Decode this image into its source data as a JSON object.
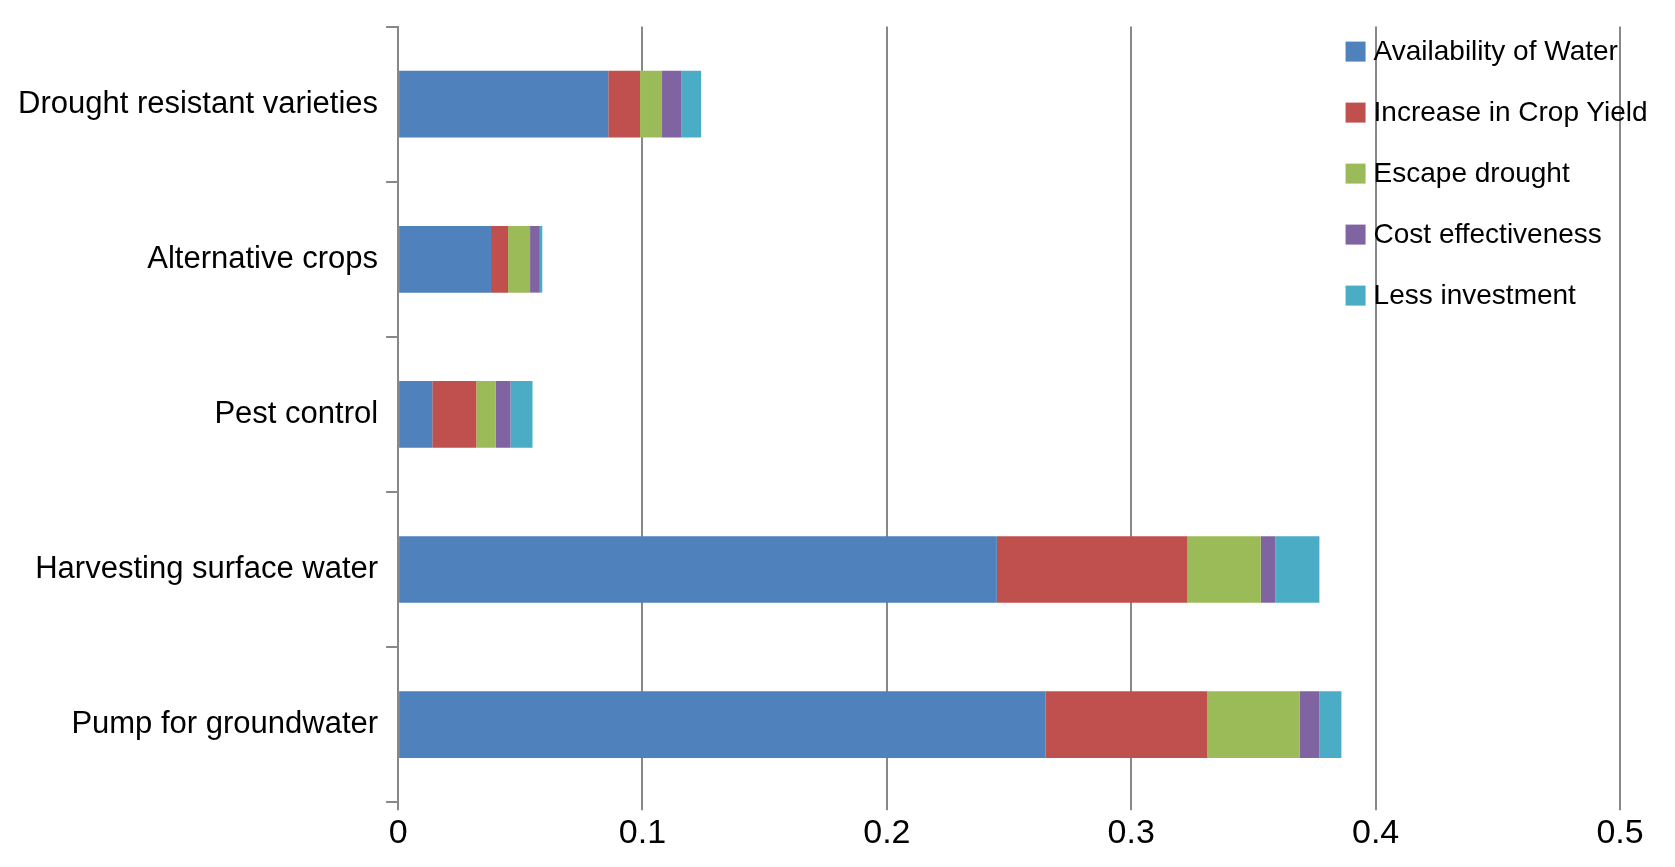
{
  "chart_data": {
    "type": "bar",
    "orientation": "horizontal",
    "stacked": true,
    "categories": [
      "Drought resistant varieties",
      "Alternative crops",
      "Pest control",
      "Harvesting surface water",
      "Pump for groundwater"
    ],
    "series": [
      {
        "name": "Availability of Water",
        "color": "#4f81bd",
        "values": [
          0.086,
          0.038,
          0.014,
          0.245,
          0.265
        ]
      },
      {
        "name": "Increase in Crop Yield",
        "color": "#c0504d",
        "values": [
          0.013,
          0.007,
          0.018,
          0.078,
          0.066
        ]
      },
      {
        "name": "Escape drought",
        "color": "#9bbb59",
        "values": [
          0.009,
          0.009,
          0.008,
          0.03,
          0.038
        ]
      },
      {
        "name": "Cost effectiveness",
        "color": "#8064a2",
        "values": [
          0.008,
          0.004,
          0.006,
          0.006,
          0.008
        ]
      },
      {
        "name": "Less investment",
        "color": "#4bacc6",
        "values": [
          0.008,
          0.001,
          0.009,
          0.018,
          0.009
        ]
      }
    ],
    "xlim": [
      0,
      0.5
    ],
    "xticks": [
      0,
      0.1,
      0.2,
      0.3,
      0.4,
      0.5
    ],
    "grid": "x",
    "legend": "top right"
  }
}
